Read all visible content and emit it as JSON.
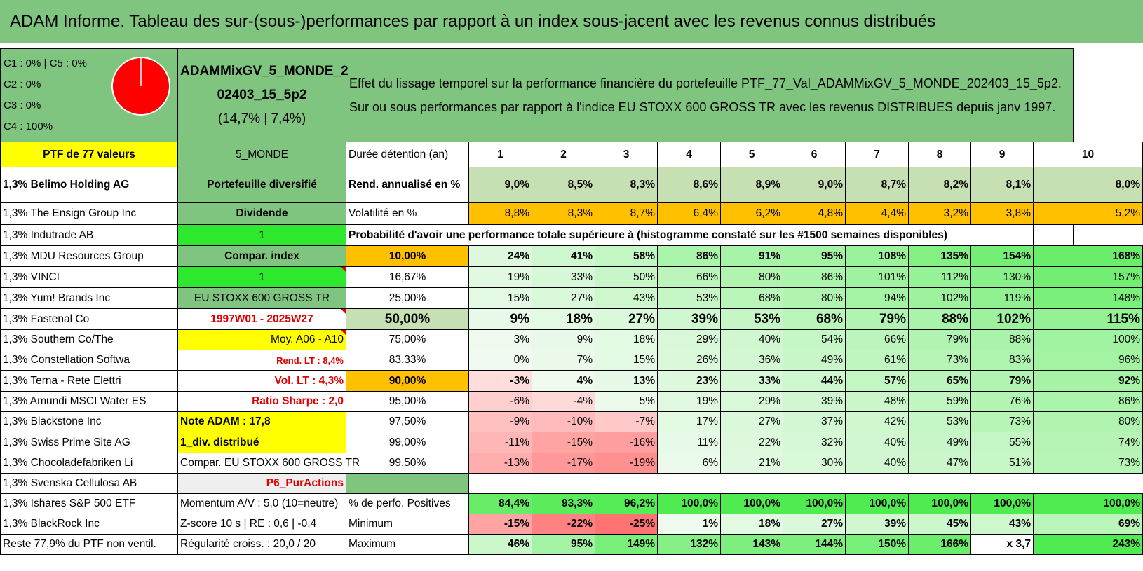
{
  "title": "ADAM Informe. Tableau des sur-(sous-)performances par rapport à un index sous-jacent avec les revenus connus distribués",
  "top": {
    "classes": [
      "C1 : 0% | C5 : 0%",
      "C2 : 0%",
      "C3 : 0%",
      "C4 : 100%"
    ],
    "pie_colors": {
      "fill": "#ff0000",
      "stroke": "#ffffff"
    },
    "pie_value_c4": 100,
    "portfolio_name_1": "ADAMMixGV_5_MONDE_2",
    "portfolio_name_2": "02403_15_5p2",
    "portfolio_name_3": "(14,7% | 7,4%)",
    "headline_1": "Effet du lissage temporel sur la performance financière du portefeuille PTF_77_Val_ADAMMixGV_5_MONDE_202403_15_5p2.",
    "headline_2": "Sur ou sous performances par rapport à l'indice EU STOXX 600 GROSS TR avec les revenus DISTRIBUES depuis janv 1997."
  },
  "left": {
    "header": "PTF de 77 valeurs",
    "holdings": [
      "1,3% Belimo Holding AG",
      "1,3% The Ensign Group Inc",
      "1,3% Indutrade AB",
      "1,3% MDU Resources Group",
      "1,3% VINCI",
      "1,3% Yum! Brands Inc",
      "1,3% Fastenal Co",
      "1,3% Southern Co/The",
      "1,3% Constellation Softwa",
      "1,3% Terna - Rete Elettri",
      "1,3% Amundi MSCI Water ES",
      "1,3% Blackstone Inc",
      "1,3% Swiss Prime Site AG",
      "1,3% Chocoladefabriken Li",
      "1,3% Svenska Cellulosa AB",
      "1,3% Ishares S&P 500 ETF",
      "1,3% BlackRock Inc",
      "Reste 77,9% du PTF non ventil."
    ]
  },
  "mid": {
    "header": "5_MONDE",
    "cells": [
      "Portefeuille diversifié",
      "Dividende",
      "1",
      "Compar. index",
      "1",
      "EU STOXX 600 GROSS TR",
      "1997W01 - 2025W27",
      "Moy. A06 - A10",
      "Rend. LT : 8,4%",
      "Vol. LT : 4,3%",
      "Ratio Sharpe : 2,0",
      "Note ADAM : 17,8",
      "1_div. distribué",
      "Compar. EU STOXX 600 GROSS TR",
      "P6_PurActions",
      "Momentum A/V : 5,0 (10=neutre)",
      "Z-score 10 s | RE : 0,6 | -0,4",
      "Régularité croiss. : 20,0 / 20"
    ]
  },
  "table": {
    "duration_label": "Durée détention (an)",
    "years": [
      "1",
      "2",
      "3",
      "4",
      "5",
      "6",
      "7",
      "8",
      "9",
      "10"
    ],
    "rend_label": "Rend. annualisé en %",
    "rend": [
      "9,0%",
      "8,5%",
      "8,3%",
      "8,6%",
      "8,9%",
      "9,0%",
      "8,7%",
      "8,2%",
      "8,1%",
      "8,0%"
    ],
    "vol_label": "Volatilité en %",
    "vol": [
      "8,8%",
      "8,3%",
      "8,7%",
      "6,4%",
      "6,2%",
      "4,8%",
      "4,4%",
      "3,2%",
      "3,8%",
      "5,2%"
    ],
    "prob_label": "Probabilité d'avoir une performance totale supérieure à (histogramme constaté sur les #1500 semaines disponibles)",
    "prob_rows": [
      {
        "p": "10,00%",
        "v": [
          "24%",
          "41%",
          "58%",
          "86%",
          "91%",
          "95%",
          "108%",
          "135%",
          "154%",
          "168%"
        ]
      },
      {
        "p": "16,67%",
        "v": [
          "19%",
          "33%",
          "50%",
          "66%",
          "80%",
          "86%",
          "101%",
          "112%",
          "130%",
          "157%"
        ]
      },
      {
        "p": "25,00%",
        "v": [
          "15%",
          "27%",
          "43%",
          "53%",
          "68%",
          "80%",
          "94%",
          "102%",
          "119%",
          "148%"
        ]
      },
      {
        "p": "50,00%",
        "v": [
          "9%",
          "18%",
          "27%",
          "39%",
          "53%",
          "68%",
          "79%",
          "88%",
          "102%",
          "115%"
        ]
      },
      {
        "p": "75,00%",
        "v": [
          "3%",
          "9%",
          "18%",
          "29%",
          "40%",
          "54%",
          "66%",
          "79%",
          "88%",
          "100%"
        ]
      },
      {
        "p": "83,33%",
        "v": [
          "0%",
          "7%",
          "15%",
          "26%",
          "36%",
          "49%",
          "61%",
          "73%",
          "83%",
          "96%"
        ]
      },
      {
        "p": "90,00%",
        "v": [
          "-3%",
          "4%",
          "13%",
          "23%",
          "33%",
          "44%",
          "57%",
          "65%",
          "79%",
          "92%"
        ]
      },
      {
        "p": "95,00%",
        "v": [
          "-6%",
          "-4%",
          "5%",
          "19%",
          "29%",
          "39%",
          "48%",
          "59%",
          "76%",
          "86%"
        ]
      },
      {
        "p": "97,50%",
        "v": [
          "-9%",
          "-10%",
          "-7%",
          "17%",
          "27%",
          "37%",
          "42%",
          "53%",
          "73%",
          "80%"
        ]
      },
      {
        "p": "99,00%",
        "v": [
          "-11%",
          "-15%",
          "-16%",
          "11%",
          "22%",
          "32%",
          "40%",
          "49%",
          "55%",
          "74%"
        ]
      },
      {
        "p": "99,50%",
        "v": [
          "-13%",
          "-17%",
          "-19%",
          "6%",
          "21%",
          "30%",
          "40%",
          "47%",
          "51%",
          "73%"
        ]
      }
    ],
    "pos_label": "% de perfo. Positives",
    "pos": [
      "84,4%",
      "93,3%",
      "96,2%",
      "100,0%",
      "100,0%",
      "100,0%",
      "100,0%",
      "100,0%",
      "100,0%",
      "100,0%"
    ],
    "min_label": "Minimum",
    "min": [
      "-15%",
      "-22%",
      "-25%",
      "1%",
      "18%",
      "27%",
      "39%",
      "45%",
      "43%",
      "69%"
    ],
    "max_label": "Maximum",
    "max": [
      "46%",
      "95%",
      "149%",
      "132%",
      "143%",
      "144%",
      "150%",
      "166%",
      "x 3,7",
      "243%"
    ]
  },
  "colors": {
    "header_green": "#7fc57f",
    "light_green": "#c6e0b4",
    "bright_green": "#2ee82e",
    "yellow": "#ffff00",
    "orange": "#ffc000",
    "red_text": "#e00000",
    "pink": "#f4a6a6"
  }
}
